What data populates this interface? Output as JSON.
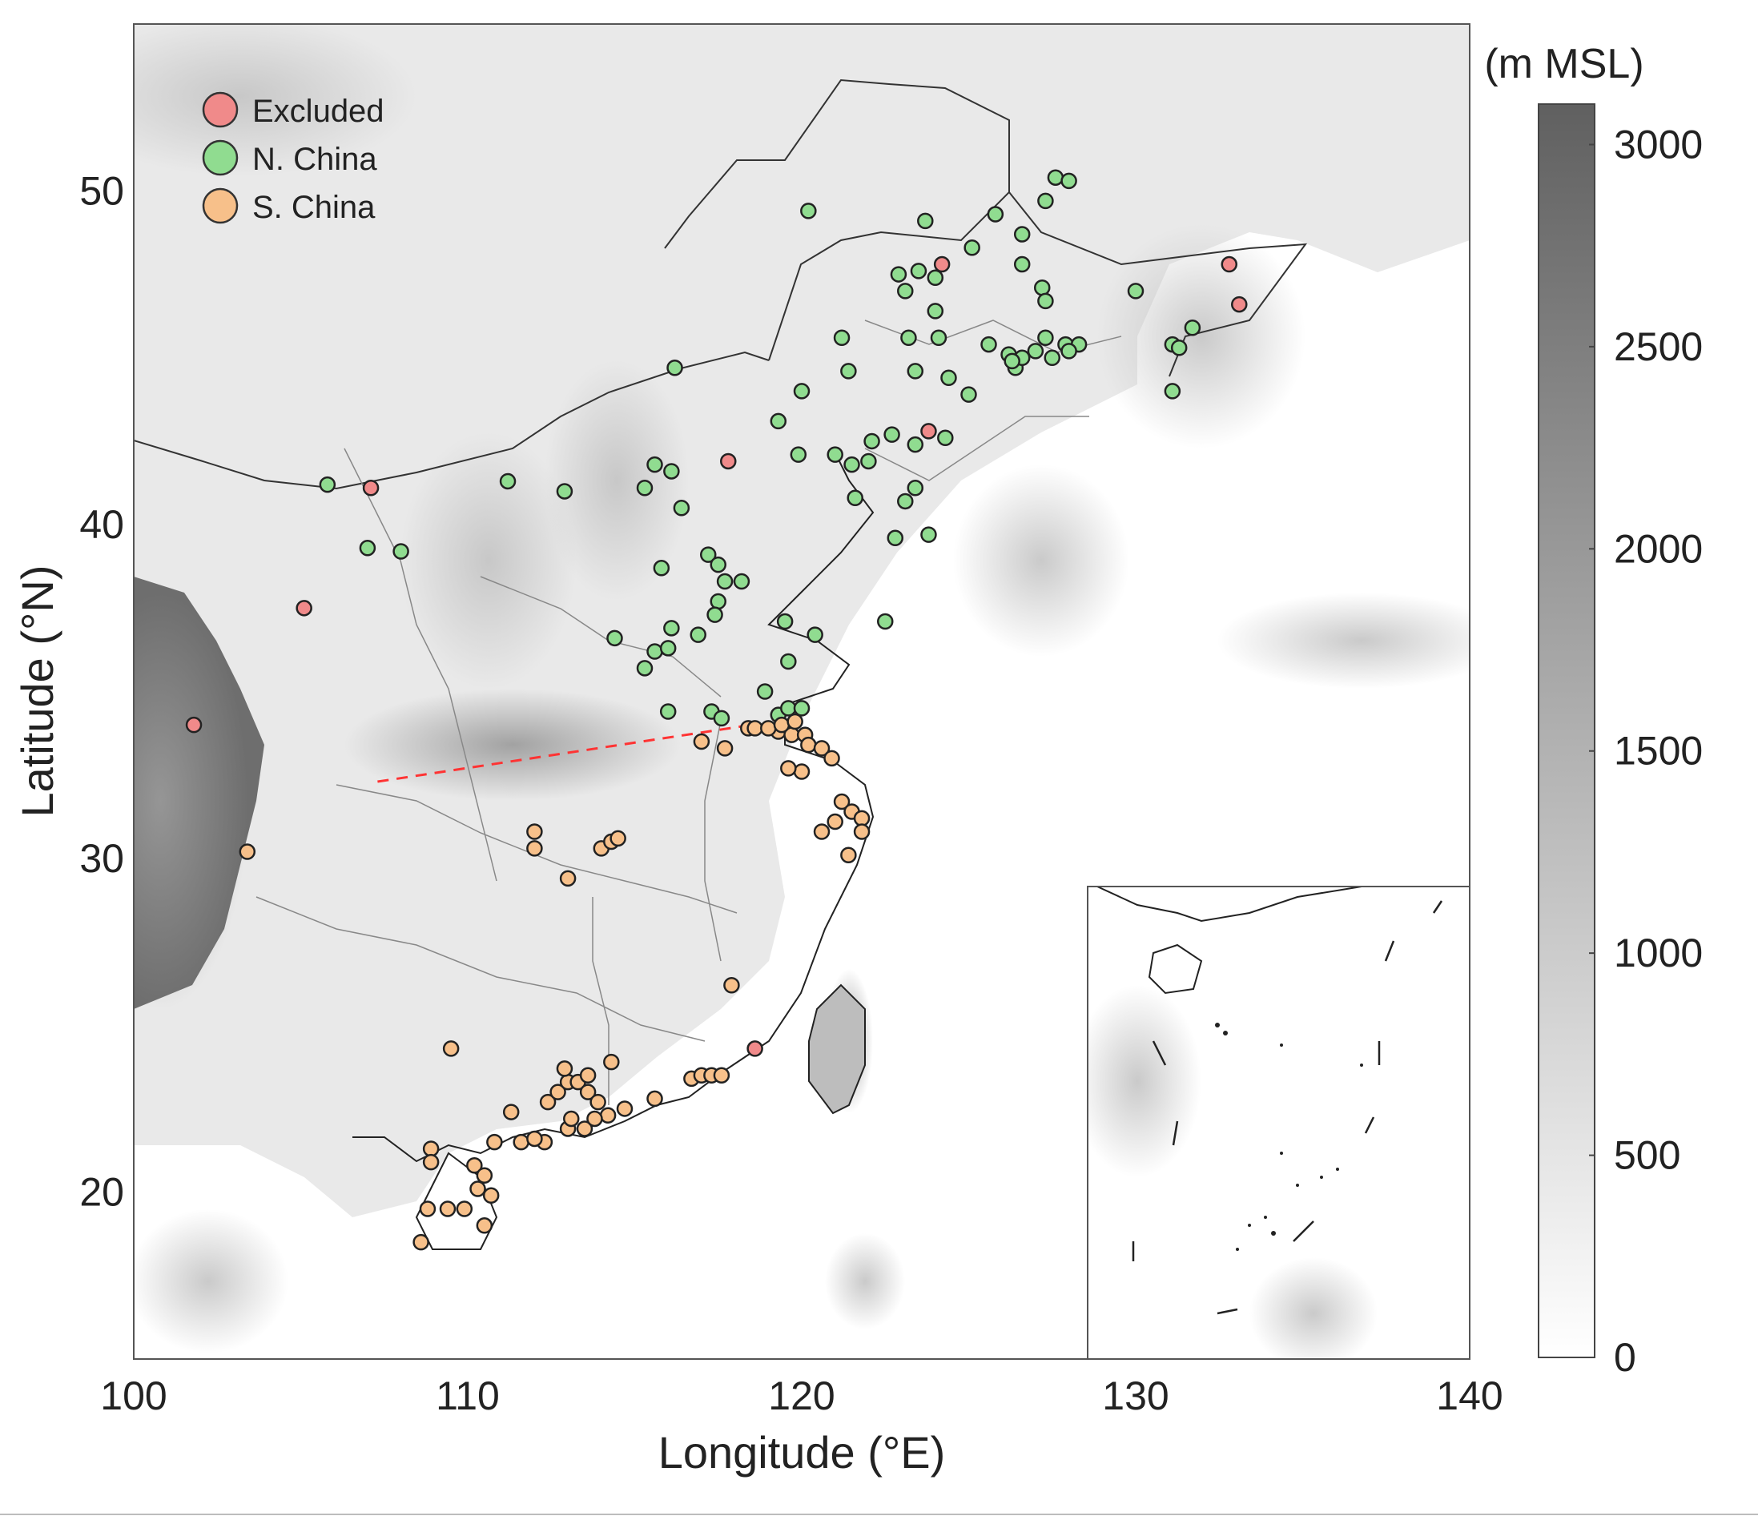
{
  "map": {
    "extent": {
      "lon": [
        100,
        140
      ],
      "lat": [
        15,
        55
      ]
    },
    "x_axis": {
      "label": "Longitude (°E)",
      "ticks": [
        100,
        110,
        120,
        130,
        140
      ]
    },
    "y_axis": {
      "label": "Latitude (°N)",
      "ticks": [
        20,
        30,
        40,
        50
      ]
    },
    "legend": {
      "placement": "top-left",
      "items": [
        {
          "label": "Excluded",
          "color": "#f08a8a"
        },
        {
          "label": "N. China",
          "color": "#90dc90"
        },
        {
          "label": "S. China",
          "color": "#f7c08a"
        }
      ]
    },
    "colorbar": {
      "unit": "(m MSL)",
      "range": [
        0,
        3100
      ],
      "ticks": [
        0,
        500,
        1000,
        1500,
        2000,
        2500,
        3000
      ],
      "color_low": "#ffffff",
      "color_high": "#606060"
    },
    "inset": {
      "extent": {
        "lon": [
          129,
          140
        ],
        "lat": [
          15,
          29
        ]
      },
      "placement": "bottom-right"
    },
    "divider_line": {
      "style": "red-dashed",
      "color": "#ff3333",
      "points": [
        [
          107.3,
          32.3
        ],
        [
          118.5,
          34.0
        ]
      ]
    },
    "stations": {
      "excluded": [
        [
          101.8,
          34.0
        ],
        [
          105.1,
          37.5
        ],
        [
          107.1,
          41.1
        ],
        [
          117.8,
          41.9
        ],
        [
          123.8,
          42.8
        ],
        [
          124.2,
          47.8
        ],
        [
          132.8,
          47.8
        ],
        [
          133.1,
          46.6
        ],
        [
          118.6,
          24.3
        ]
      ],
      "north": [
        [
          105.8,
          41.2
        ],
        [
          107.0,
          39.3
        ],
        [
          108.0,
          39.2
        ],
        [
          111.2,
          41.3
        ],
        [
          112.9,
          41.0
        ],
        [
          116.2,
          44.7
        ],
        [
          120.2,
          49.4
        ],
        [
          123.7,
          49.1
        ],
        [
          125.1,
          48.3
        ],
        [
          125.8,
          49.3
        ],
        [
          126.6,
          48.7
        ],
        [
          126.6,
          47.8
        ],
        [
          127.3,
          49.7
        ],
        [
          127.6,
          50.4
        ],
        [
          128.0,
          50.3
        ],
        [
          122.9,
          47.5
        ],
        [
          123.5,
          47.6
        ],
        [
          123.1,
          47.0
        ],
        [
          124.0,
          47.4
        ],
        [
          124.0,
          46.4
        ],
        [
          124.1,
          45.6
        ],
        [
          123.2,
          45.6
        ],
        [
          125.6,
          45.4
        ],
        [
          126.2,
          45.1
        ],
        [
          126.4,
          44.7
        ],
        [
          126.6,
          45.0
        ],
        [
          127.0,
          45.2
        ],
        [
          127.3,
          45.6
        ],
        [
          127.5,
          45.0
        ],
        [
          127.9,
          45.4
        ],
        [
          128.3,
          45.4
        ],
        [
          128.0,
          45.2
        ],
        [
          126.3,
          44.9
        ],
        [
          127.2,
          47.1
        ],
        [
          127.3,
          46.7
        ],
        [
          130.0,
          47.0
        ],
        [
          131.7,
          45.9
        ],
        [
          131.1,
          45.4
        ],
        [
          131.3,
          45.3
        ],
        [
          131.1,
          44.0
        ],
        [
          121.2,
          45.6
        ],
        [
          121.4,
          44.6
        ],
        [
          123.4,
          44.6
        ],
        [
          124.4,
          44.4
        ],
        [
          125.0,
          43.9
        ],
        [
          120.0,
          44.0
        ],
        [
          119.3,
          43.1
        ],
        [
          119.9,
          42.1
        ],
        [
          121.0,
          42.1
        ],
        [
          122.1,
          42.5
        ],
        [
          122.7,
          42.7
        ],
        [
          123.4,
          42.4
        ],
        [
          124.3,
          42.6
        ],
        [
          121.5,
          41.8
        ],
        [
          122.0,
          41.9
        ],
        [
          121.6,
          40.8
        ],
        [
          123.1,
          40.7
        ],
        [
          123.4,
          41.1
        ],
        [
          122.8,
          39.6
        ],
        [
          123.8,
          39.7
        ],
        [
          115.6,
          41.8
        ],
        [
          116.1,
          41.6
        ],
        [
          115.3,
          41.1
        ],
        [
          116.4,
          40.5
        ],
        [
          115.8,
          38.7
        ],
        [
          117.2,
          39.1
        ],
        [
          117.5,
          38.8
        ],
        [
          117.7,
          38.3
        ],
        [
          118.2,
          38.3
        ],
        [
          117.5,
          37.7
        ],
        [
          117.4,
          37.3
        ],
        [
          116.1,
          36.9
        ],
        [
          115.6,
          36.2
        ],
        [
          115.3,
          35.7
        ],
        [
          116.0,
          36.3
        ],
        [
          116.9,
          36.7
        ],
        [
          114.4,
          36.6
        ],
        [
          119.5,
          37.1
        ],
        [
          120.4,
          36.7
        ],
        [
          122.5,
          37.1
        ],
        [
          119.6,
          35.9
        ],
        [
          118.9,
          35.0
        ],
        [
          119.3,
          34.3
        ],
        [
          119.6,
          34.5
        ],
        [
          120.0,
          34.5
        ],
        [
          116.0,
          34.4
        ],
        [
          117.3,
          34.4
        ],
        [
          117.6,
          34.2
        ]
      ],
      "south": [
        [
          103.4,
          30.2
        ],
        [
          112.0,
          30.8
        ],
        [
          112.0,
          30.3
        ],
        [
          114.0,
          30.3
        ],
        [
          114.3,
          30.5
        ],
        [
          114.5,
          30.6
        ],
        [
          113.0,
          29.4
        ],
        [
          117.0,
          33.5
        ],
        [
          117.7,
          33.3
        ],
        [
          118.4,
          33.9
        ],
        [
          118.6,
          33.9
        ],
        [
          119.3,
          33.8
        ],
        [
          119.7,
          33.7
        ],
        [
          119.0,
          33.9
        ],
        [
          119.4,
          34.0
        ],
        [
          119.8,
          34.1
        ],
        [
          120.1,
          33.7
        ],
        [
          120.2,
          33.4
        ],
        [
          120.6,
          33.3
        ],
        [
          120.9,
          33.0
        ],
        [
          120.0,
          32.6
        ],
        [
          119.6,
          32.7
        ],
        [
          121.2,
          31.7
        ],
        [
          121.5,
          31.4
        ],
        [
          121.8,
          31.2
        ],
        [
          121.0,
          31.1
        ],
        [
          121.8,
          30.8
        ],
        [
          121.4,
          30.1
        ],
        [
          120.6,
          30.8
        ],
        [
          109.5,
          24.3
        ],
        [
          111.3,
          22.4
        ],
        [
          110.8,
          21.5
        ],
        [
          108.9,
          21.3
        ],
        [
          108.9,
          20.9
        ],
        [
          110.2,
          20.8
        ],
        [
          110.5,
          20.5
        ],
        [
          110.3,
          20.1
        ],
        [
          110.7,
          19.9
        ],
        [
          109.9,
          19.5
        ],
        [
          109.4,
          19.5
        ],
        [
          108.8,
          19.5
        ],
        [
          110.5,
          19.0
        ],
        [
          108.6,
          18.5
        ],
        [
          111.6,
          21.5
        ],
        [
          112.3,
          21.5
        ],
        [
          112.0,
          21.6
        ],
        [
          113.0,
          21.9
        ],
        [
          113.5,
          21.9
        ],
        [
          112.4,
          22.7
        ],
        [
          112.7,
          23.0
        ],
        [
          113.0,
          23.3
        ],
        [
          112.9,
          23.7
        ],
        [
          113.3,
          23.3
        ],
        [
          113.6,
          23.0
        ],
        [
          113.9,
          22.7
        ],
        [
          114.2,
          22.3
        ],
        [
          114.7,
          22.5
        ],
        [
          113.8,
          22.2
        ],
        [
          114.3,
          23.9
        ],
        [
          113.6,
          23.5
        ],
        [
          113.1,
          22.2
        ],
        [
          115.6,
          22.8
        ],
        [
          116.7,
          23.4
        ],
        [
          117.0,
          23.5
        ],
        [
          117.3,
          23.5
        ],
        [
          117.6,
          23.5
        ],
        [
          117.9,
          26.2
        ]
      ]
    }
  }
}
